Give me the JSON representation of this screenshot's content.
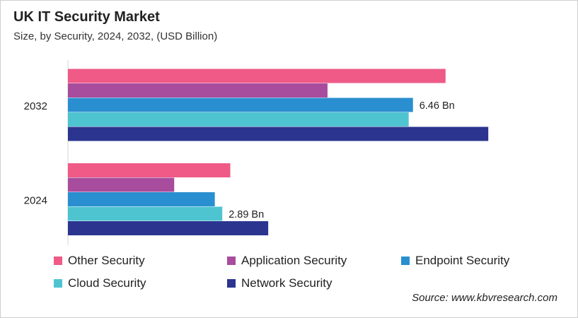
{
  "chart_data": {
    "type": "bar",
    "orientation": "horizontal",
    "title": "UK IT Security Market",
    "subtitle": "Size, by Security, 2024, 2032, (USD Billion)",
    "categories": [
      "2032",
      "2024"
    ],
    "series": [
      {
        "name": "Other Security",
        "color": "#ef5a87",
        "values": [
          7.07,
          3.04
        ]
      },
      {
        "name": "Application Security",
        "color": "#a84c9d",
        "values": [
          4.86,
          1.99
        ]
      },
      {
        "name": "Endpoint Security",
        "color": "#2a8fd0",
        "values": [
          6.46,
          2.75
        ]
      },
      {
        "name": "Cloud Security",
        "color": "#4fc4d1",
        "values": [
          6.38,
          2.89
        ]
      },
      {
        "name": "Network Security",
        "color": "#2b348f",
        "values": [
          7.87,
          3.75
        ]
      }
    ],
    "data_labels": [
      {
        "category": "2032",
        "series": "Endpoint Security",
        "text": "6.46 Bn"
      },
      {
        "category": "2024",
        "series": "Cloud Security",
        "text": "2.89 Bn"
      }
    ],
    "xlim": [
      0,
      9.5
    ],
    "grid": false,
    "legend_placement": "bottom",
    "source": "Source: www.kbvresearch.com"
  }
}
